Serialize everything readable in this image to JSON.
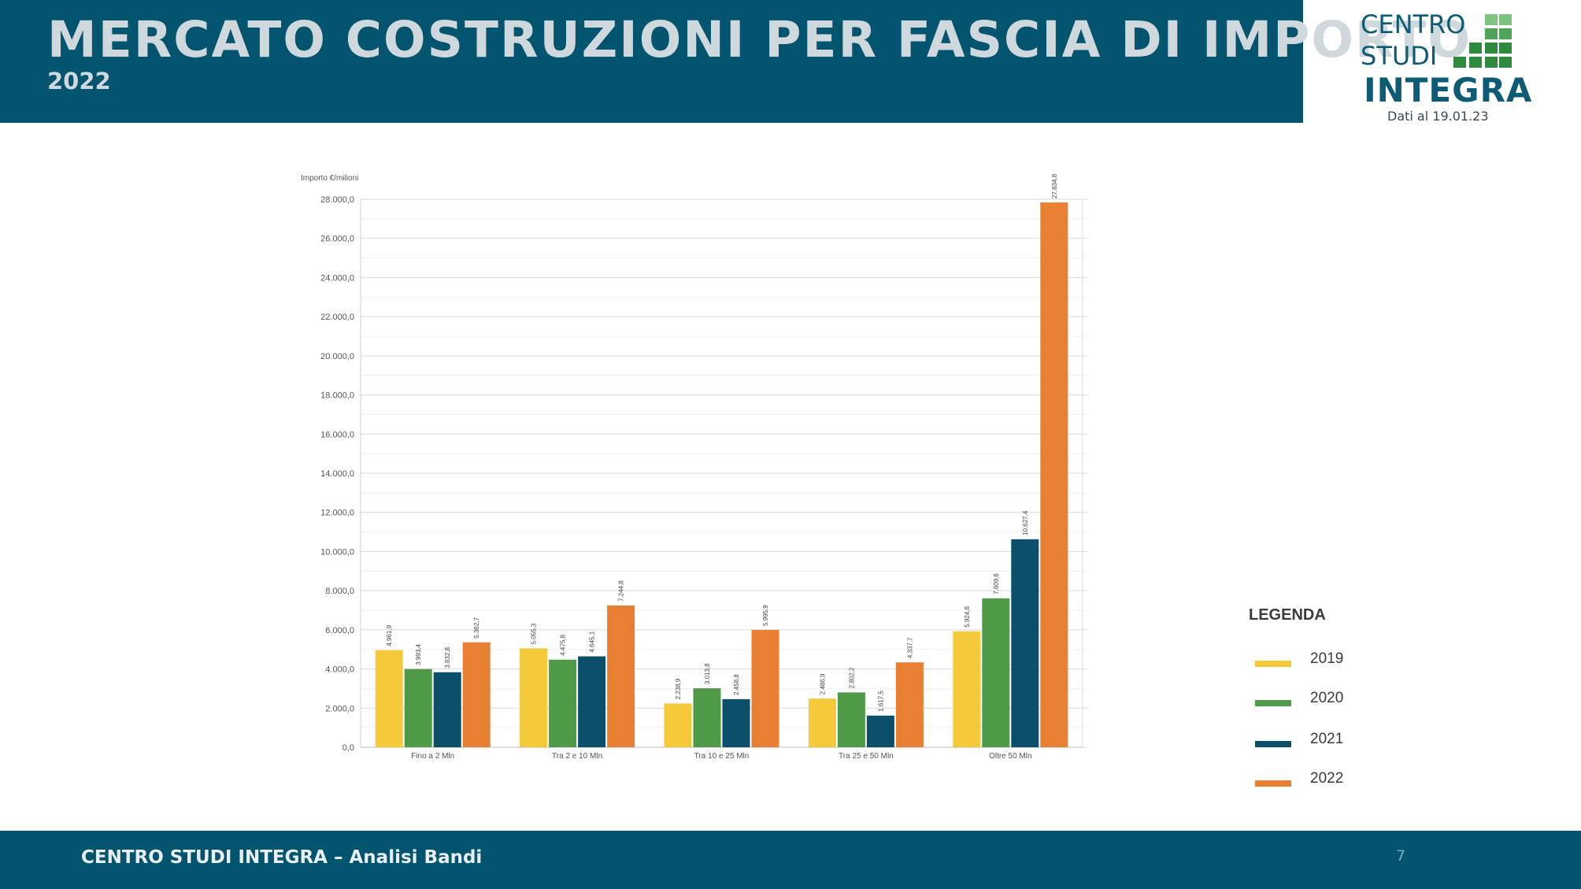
{
  "header": {
    "title": "MERCATO COSTRUZIONI PER FASCIA DI IMPORTO",
    "subtitle": "2022"
  },
  "logo": {
    "line1": "CENTRO",
    "line2": "STUDI",
    "brand": "INTEGRA",
    "date": "Dati al 19.01.23",
    "colors": {
      "dark_green": "#2e8b3e",
      "light_green": "#7cc47f",
      "blue": "#0d5b74"
    }
  },
  "footer": {
    "text": "CENTRO STUDI INTEGRA – Analisi Bandi",
    "page": "7"
  },
  "legend": {
    "title": "LEGENDA",
    "items": [
      {
        "label": "2019",
        "color": "#f5c93a"
      },
      {
        "label": "2020",
        "color": "#4e9a47"
      },
      {
        "label": "2021",
        "color": "#0c4f6b"
      },
      {
        "label": "2022",
        "color": "#e97f33"
      }
    ]
  },
  "chart_data": {
    "type": "bar",
    "ylabel": "Importo €/milioni",
    "ylim": [
      0,
      28000
    ],
    "yticks": [
      "0,0",
      "2.000,0",
      "4.000,0",
      "6.000,0",
      "8.000,0",
      "10.000,0",
      "12.000,0",
      "14.000,0",
      "16.000,0",
      "18.000,0",
      "20.000,0",
      "22.000,0",
      "24.000,0",
      "26.000,0",
      "28.000,0"
    ],
    "ytick_values": [
      0,
      2000,
      4000,
      6000,
      8000,
      10000,
      12000,
      14000,
      16000,
      18000,
      20000,
      22000,
      24000,
      26000,
      28000
    ],
    "grid": true,
    "legend_position": "right",
    "categories": [
      "Fino a 2 Mln",
      "Tra 2 e 10 Mln",
      "Tra 10 e 25 Mln",
      "Tra 25 e 50 Mln",
      "Oltre 50 Mln"
    ],
    "series": [
      {
        "name": "2019",
        "color": "#f5c93a",
        "values": [
          4961.9,
          5055.3,
          2238.9,
          2486.9,
          5924.8
        ],
        "labels": [
          "4.961,9",
          "5.055,3",
          "2.238,9",
          "2.486,9",
          "5.924,8"
        ]
      },
      {
        "name": "2020",
        "color": "#4e9a47",
        "values": [
          3993.4,
          4475.8,
          3013.8,
          2802.2,
          7609.6
        ],
        "labels": [
          "3.993,4",
          "4.475,8",
          "3.013,8",
          "2.802,2",
          "7.609,6"
        ]
      },
      {
        "name": "2021",
        "color": "#0c4f6b",
        "values": [
          3832.8,
          4645.1,
          2458.8,
          1617.5,
          10627.4
        ],
        "labels": [
          "3.832,8",
          "4.645,1",
          "2.458,8",
          "1.617,5",
          "10.627,4"
        ]
      },
      {
        "name": "2022",
        "color": "#e97f33",
        "values": [
          5362.7,
          7244.8,
          5995.9,
          4337.7,
          27834.8
        ],
        "labels": [
          "5.362,7",
          "7.244,8",
          "5.995,9",
          "4.337,7",
          "27.834,8"
        ]
      }
    ]
  }
}
